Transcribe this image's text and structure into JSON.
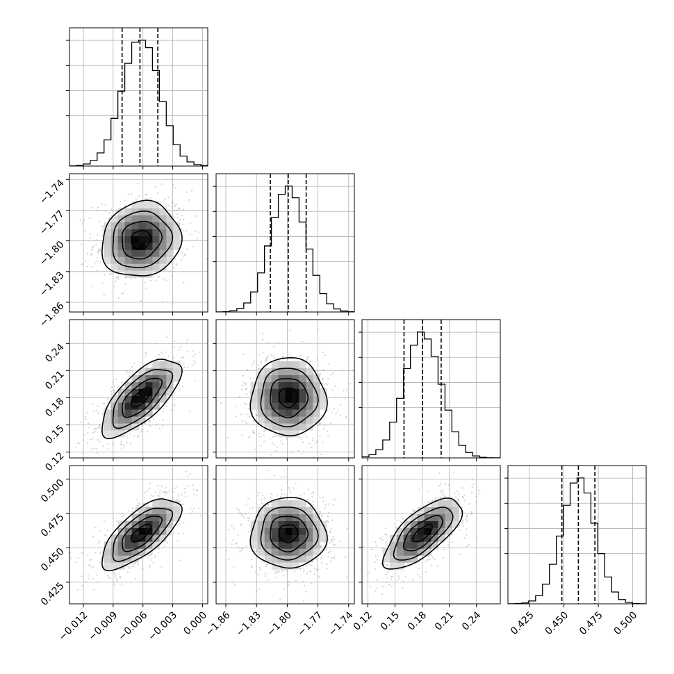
{
  "chart_data": {
    "type": "corner",
    "params": [
      {
        "ticks": [
          -0.012,
          -0.009,
          -0.006,
          -0.003,
          0.0
        ],
        "tick_labels": [
          "−0.012",
          "−0.009",
          "−0.006",
          "−0.003",
          "0.000"
        ],
        "range": [
          -0.0134,
          0.00053
        ],
        "mean": -0.0062,
        "sd": 0.0019,
        "quantiles": [
          -0.0081,
          -0.0063,
          -0.0045
        ]
      },
      {
        "ticks": [
          -1.86,
          -1.83,
          -1.8,
          -1.77,
          -1.74
        ],
        "tick_labels": [
          "−1.86",
          "−1.83",
          "−1.80",
          "−1.77",
          "−1.74"
        ],
        "range": [
          -1.8695,
          -1.7344
        ],
        "mean": -1.799,
        "sd": 0.0175,
        "quantiles": [
          -1.8165,
          -1.799,
          -1.7815
        ]
      },
      {
        "ticks": [
          0.12,
          0.15,
          0.18,
          0.21,
          0.24
        ],
        "tick_labels": [
          "0.12",
          "0.15",
          "0.18",
          "0.21",
          "0.24"
        ],
        "range": [
          0.1136,
          0.2663
        ],
        "mean": 0.1805,
        "sd": 0.0205,
        "quantiles": [
          0.16,
          0.1805,
          0.201
        ]
      },
      {
        "ticks": [
          0.425,
          0.45,
          0.475,
          0.5
        ],
        "tick_labels": [
          "0.425",
          "0.450",
          "0.475",
          "0.500"
        ],
        "range": [
          0.4093,
          0.5098
        ],
        "mean": 0.4605,
        "sd": 0.0122,
        "quantiles": [
          0.4485,
          0.4605,
          0.4725
        ]
      }
    ],
    "correlations": [
      [
        0,
        1,
        0.1
      ],
      [
        0,
        2,
        0.7
      ],
      [
        0,
        3,
        0.7
      ],
      [
        1,
        2,
        0.0
      ],
      [
        1,
        3,
        0.0
      ],
      [
        2,
        3,
        0.7
      ]
    ],
    "histogram_peaks": [
      {
        "ticks": [
          0.2,
          0.3,
          0.4,
          0.5
        ]
      }
    ],
    "grid": true,
    "contour_levels_sigma": [
      0.5,
      1.0,
      1.5,
      2.0
    ],
    "colors": {
      "line": "#000000",
      "density_dark": "#000000",
      "density_light": "#ffffff",
      "scatter": "#9e9e9e",
      "grid": "#b0b0b0"
    }
  }
}
